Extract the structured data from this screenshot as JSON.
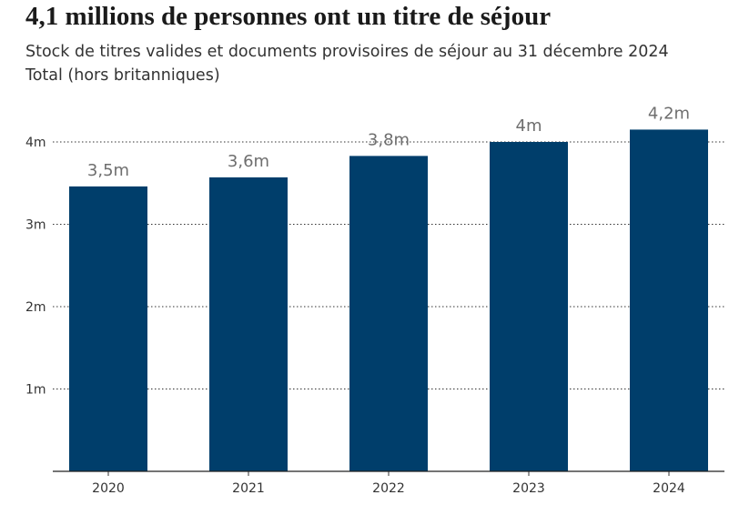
{
  "header": {
    "title": "4,1 millions de personnes ont un titre de séjour",
    "subtitle_line1": "Stock de titres valides et documents provisoires de séjour au 31 décembre 2024",
    "subtitle_line2": "Total (hors britanniques)"
  },
  "colors": {
    "bar": "#003e6b",
    "grid": "#333333",
    "axis_text": "#333333",
    "value_label": "#6e6e6e"
  },
  "chart_data": {
    "type": "bar",
    "categories": [
      "2020",
      "2021",
      "2022",
      "2023",
      "2024"
    ],
    "values": [
      3.46,
      3.57,
      3.83,
      4.0,
      4.15
    ],
    "value_labels": [
      "3,5m",
      "3,6m",
      "3,8m",
      "4m",
      "4,2m"
    ],
    "ylim": [
      0,
      4
    ],
    "yticks": [
      1,
      2,
      3,
      4
    ],
    "ytick_labels": [
      "1m",
      "2m",
      "3m",
      "4m"
    ],
    "grid": "horizontal dotted",
    "legend": "none"
  }
}
